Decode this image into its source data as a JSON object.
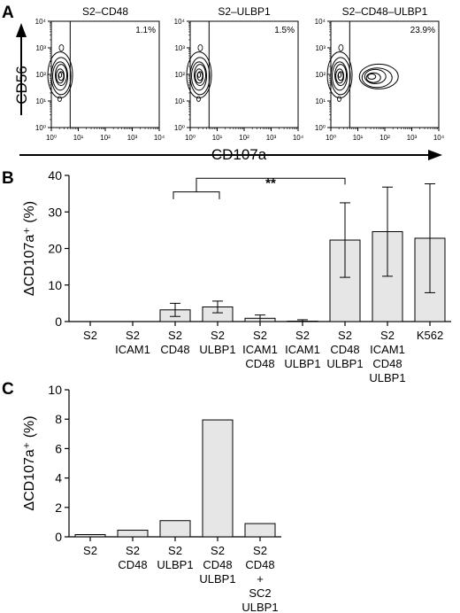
{
  "figure": {
    "panel_a_letter": "A",
    "panel_b_letter": "B",
    "panel_c_letter": "C",
    "panel_a_y_axis_label": "CD56",
    "panel_a_x_axis_label": "CD107a",
    "significance_label": "**"
  },
  "chart_data": [
    {
      "type": "contour",
      "panel": "A",
      "title": "S2–CD48",
      "percent_label": "1.1%",
      "percent_value": 1.1,
      "x_scale": "log",
      "y_scale": "log",
      "xlim": [
        1,
        10000
      ],
      "ylim": [
        1,
        10000
      ],
      "x_ticks": [
        "10⁰",
        "10¹",
        "10²",
        "10³",
        "10⁴"
      ],
      "y_ticks": [
        "10⁰",
        "10¹",
        "10²",
        "10³",
        "10⁴"
      ],
      "gate_x": 5
    },
    {
      "type": "contour",
      "panel": "A",
      "title": "S2–ULBP1",
      "percent_label": "1.5%",
      "percent_value": 1.5,
      "x_scale": "log",
      "y_scale": "log",
      "xlim": [
        1,
        10000
      ],
      "ylim": [
        1,
        10000
      ],
      "x_ticks": [
        "10⁰",
        "10¹",
        "10²",
        "10³",
        "10⁴"
      ],
      "y_ticks": [
        "10⁰",
        "10¹",
        "10²",
        "10³",
        "10⁴"
      ],
      "gate_x": 5
    },
    {
      "type": "contour",
      "panel": "A",
      "title": "S2–CD48–ULBP1",
      "percent_label": "23.9%",
      "percent_value": 23.9,
      "x_scale": "log",
      "y_scale": "log",
      "xlim": [
        1,
        10000
      ],
      "ylim": [
        1,
        10000
      ],
      "x_ticks": [
        "10⁰",
        "10¹",
        "10²",
        "10³",
        "10⁴"
      ],
      "y_ticks": [
        "10⁰",
        "10¹",
        "10²",
        "10³",
        "10⁴"
      ],
      "gate_x": 5
    },
    {
      "type": "bar",
      "panel": "B",
      "ylabel": "ΔCD107a⁺ (%)",
      "ylim": [
        0,
        40
      ],
      "yticks": [
        0,
        10,
        20,
        30,
        40
      ],
      "categories": [
        [
          "S2"
        ],
        [
          "S2",
          "ICAM1"
        ],
        [
          "S2",
          "CD48"
        ],
        [
          "S2",
          "ULBP1"
        ],
        [
          "S2",
          "ICAM1",
          "CD48"
        ],
        [
          "S2",
          "ICAM1",
          "ULBP1"
        ],
        [
          "S2",
          "CD48",
          "ULBP1"
        ],
        [
          "S2",
          "ICAM1",
          "CD48",
          "ULBP1"
        ],
        [
          "K562"
        ]
      ],
      "values": [
        0,
        0,
        3.2,
        4.0,
        0.9,
        0.1,
        22.3,
        24.6,
        22.8
      ],
      "errors": [
        0,
        0,
        1.8,
        1.6,
        0.9,
        0.4,
        10.2,
        12.2,
        14.9
      ],
      "significance": {
        "label": "**",
        "group": [
          2,
          3
        ],
        "target": 6
      }
    },
    {
      "type": "bar",
      "panel": "C",
      "ylabel": "ΔCD107a⁺ (%)",
      "ylim": [
        0,
        10
      ],
      "yticks": [
        0,
        2,
        4,
        6,
        8,
        10
      ],
      "categories": [
        [
          "S2"
        ],
        [
          "S2",
          "CD48"
        ],
        [
          "S2",
          "ULBP1"
        ],
        [
          "S2",
          "CD48",
          "ULBP1"
        ],
        [
          "S2",
          "CD48",
          "+",
          "SC2",
          "ULBP1"
        ]
      ],
      "values": [
        0.15,
        0.45,
        1.1,
        7.95,
        0.9
      ]
    }
  ]
}
